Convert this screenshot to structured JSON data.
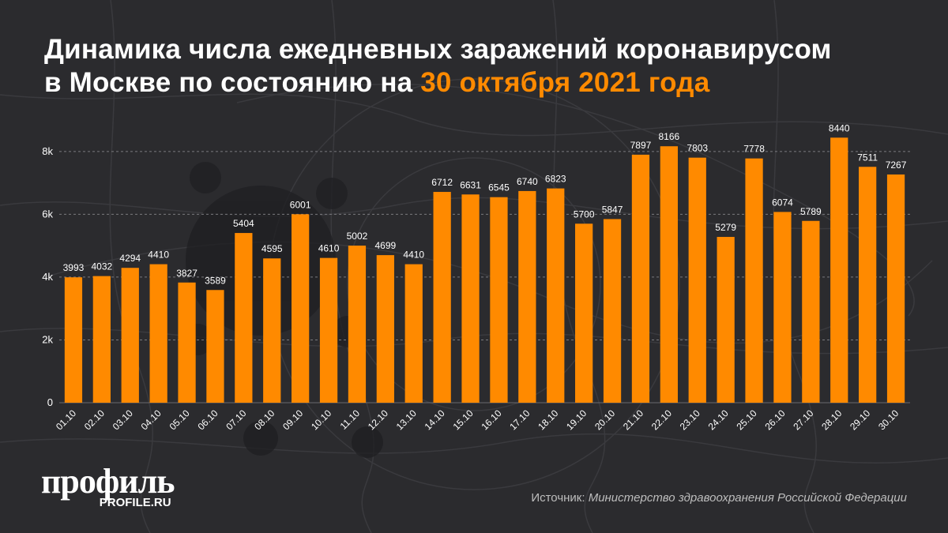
{
  "title": {
    "line1": "Динамика числа ежедневных заражений коронавирусом",
    "line2_prefix": "в Москве по состоянию на ",
    "line2_highlight": "30 октября 2021 года"
  },
  "logo": {
    "main": "профиль",
    "sub": "PROFILE.RU"
  },
  "source": {
    "label": "Источник: ",
    "value": "Министерство здравоохранения Российской Федерации"
  },
  "colors": {
    "background": "#2b2b2e",
    "bar": "#ff8a00",
    "accent": "#ff8a00",
    "text": "#ffffff"
  },
  "chart_data": {
    "type": "bar",
    "categories": [
      "01.10",
      "02.10",
      "03.10",
      "04.10",
      "05.10",
      "06.10",
      "07.10",
      "08.10",
      "09.10",
      "10.10",
      "11.10",
      "12.10",
      "13.10",
      "14.10",
      "15.10",
      "16.10",
      "17.10",
      "18.10",
      "19.10",
      "20.10",
      "21.10",
      "22.10",
      "23.10",
      "24.10",
      "25.10",
      "26.10",
      "27.10",
      "28.10",
      "29.10",
      "30.10"
    ],
    "values": [
      3993,
      4032,
      4294,
      4410,
      3827,
      3589,
      5404,
      4595,
      6001,
      4610,
      5002,
      4699,
      4410,
      6712,
      6631,
      6545,
      6740,
      6823,
      5700,
      5847,
      7897,
      8166,
      7803,
      5279,
      7778,
      6074,
      5789,
      8440,
      7511,
      7267
    ],
    "yticks": [
      0,
      2000,
      4000,
      6000,
      8000
    ],
    "ytick_labels": [
      "0",
      "2k",
      "4k",
      "6k",
      "8k"
    ],
    "ylim": [
      0,
      8800
    ],
    "grid": true,
    "data_labels": true
  }
}
